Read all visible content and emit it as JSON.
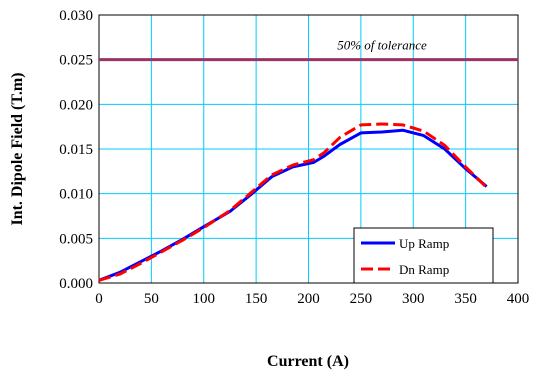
{
  "chart_data": {
    "type": "line",
    "xlabel": "Current (A)",
    "ylabel": "Int. Dipole Field (T.m)",
    "xlim": [
      0,
      400
    ],
    "ylim": [
      0,
      0.03
    ],
    "x_ticks": [
      "0",
      "50",
      "100",
      "150",
      "200",
      "250",
      "300",
      "350",
      "400"
    ],
    "y_ticks": [
      "0.000",
      "0.005",
      "0.010",
      "0.015",
      "0.020",
      "0.025",
      "0.030"
    ],
    "grid": true,
    "legend_position": "lower-right",
    "series": [
      {
        "name": "Up Ramp",
        "color": "#0000ff",
        "dash": "solid",
        "x": [
          0,
          20,
          40,
          60,
          80,
          100,
          125,
          145,
          165,
          185,
          205,
          215,
          230,
          250,
          270,
          290,
          310,
          330,
          350,
          370
        ],
        "y": [
          0.0003,
          0.0012,
          0.0024,
          0.0036,
          0.0049,
          0.0063,
          0.008,
          0.0099,
          0.0119,
          0.013,
          0.0135,
          0.0142,
          0.0155,
          0.0168,
          0.0169,
          0.0171,
          0.0165,
          0.015,
          0.0128,
          0.0108
        ]
      },
      {
        "name": "Dn Ramp",
        "color": "#ff0000",
        "dash": "dashed",
        "x": [
          0,
          20,
          40,
          60,
          80,
          100,
          125,
          145,
          165,
          185,
          205,
          215,
          230,
          250,
          270,
          290,
          310,
          330,
          350,
          370
        ],
        "y": [
          0.0003,
          0.001,
          0.0022,
          0.0035,
          0.0048,
          0.0062,
          0.0081,
          0.0101,
          0.0121,
          0.0132,
          0.0138,
          0.0146,
          0.0163,
          0.0177,
          0.0178,
          0.0177,
          0.017,
          0.0154,
          0.013,
          0.0107
        ]
      }
    ],
    "reference_line": {
      "y": 0.025,
      "label": "50% of tolerance",
      "color": "#993366"
    }
  }
}
